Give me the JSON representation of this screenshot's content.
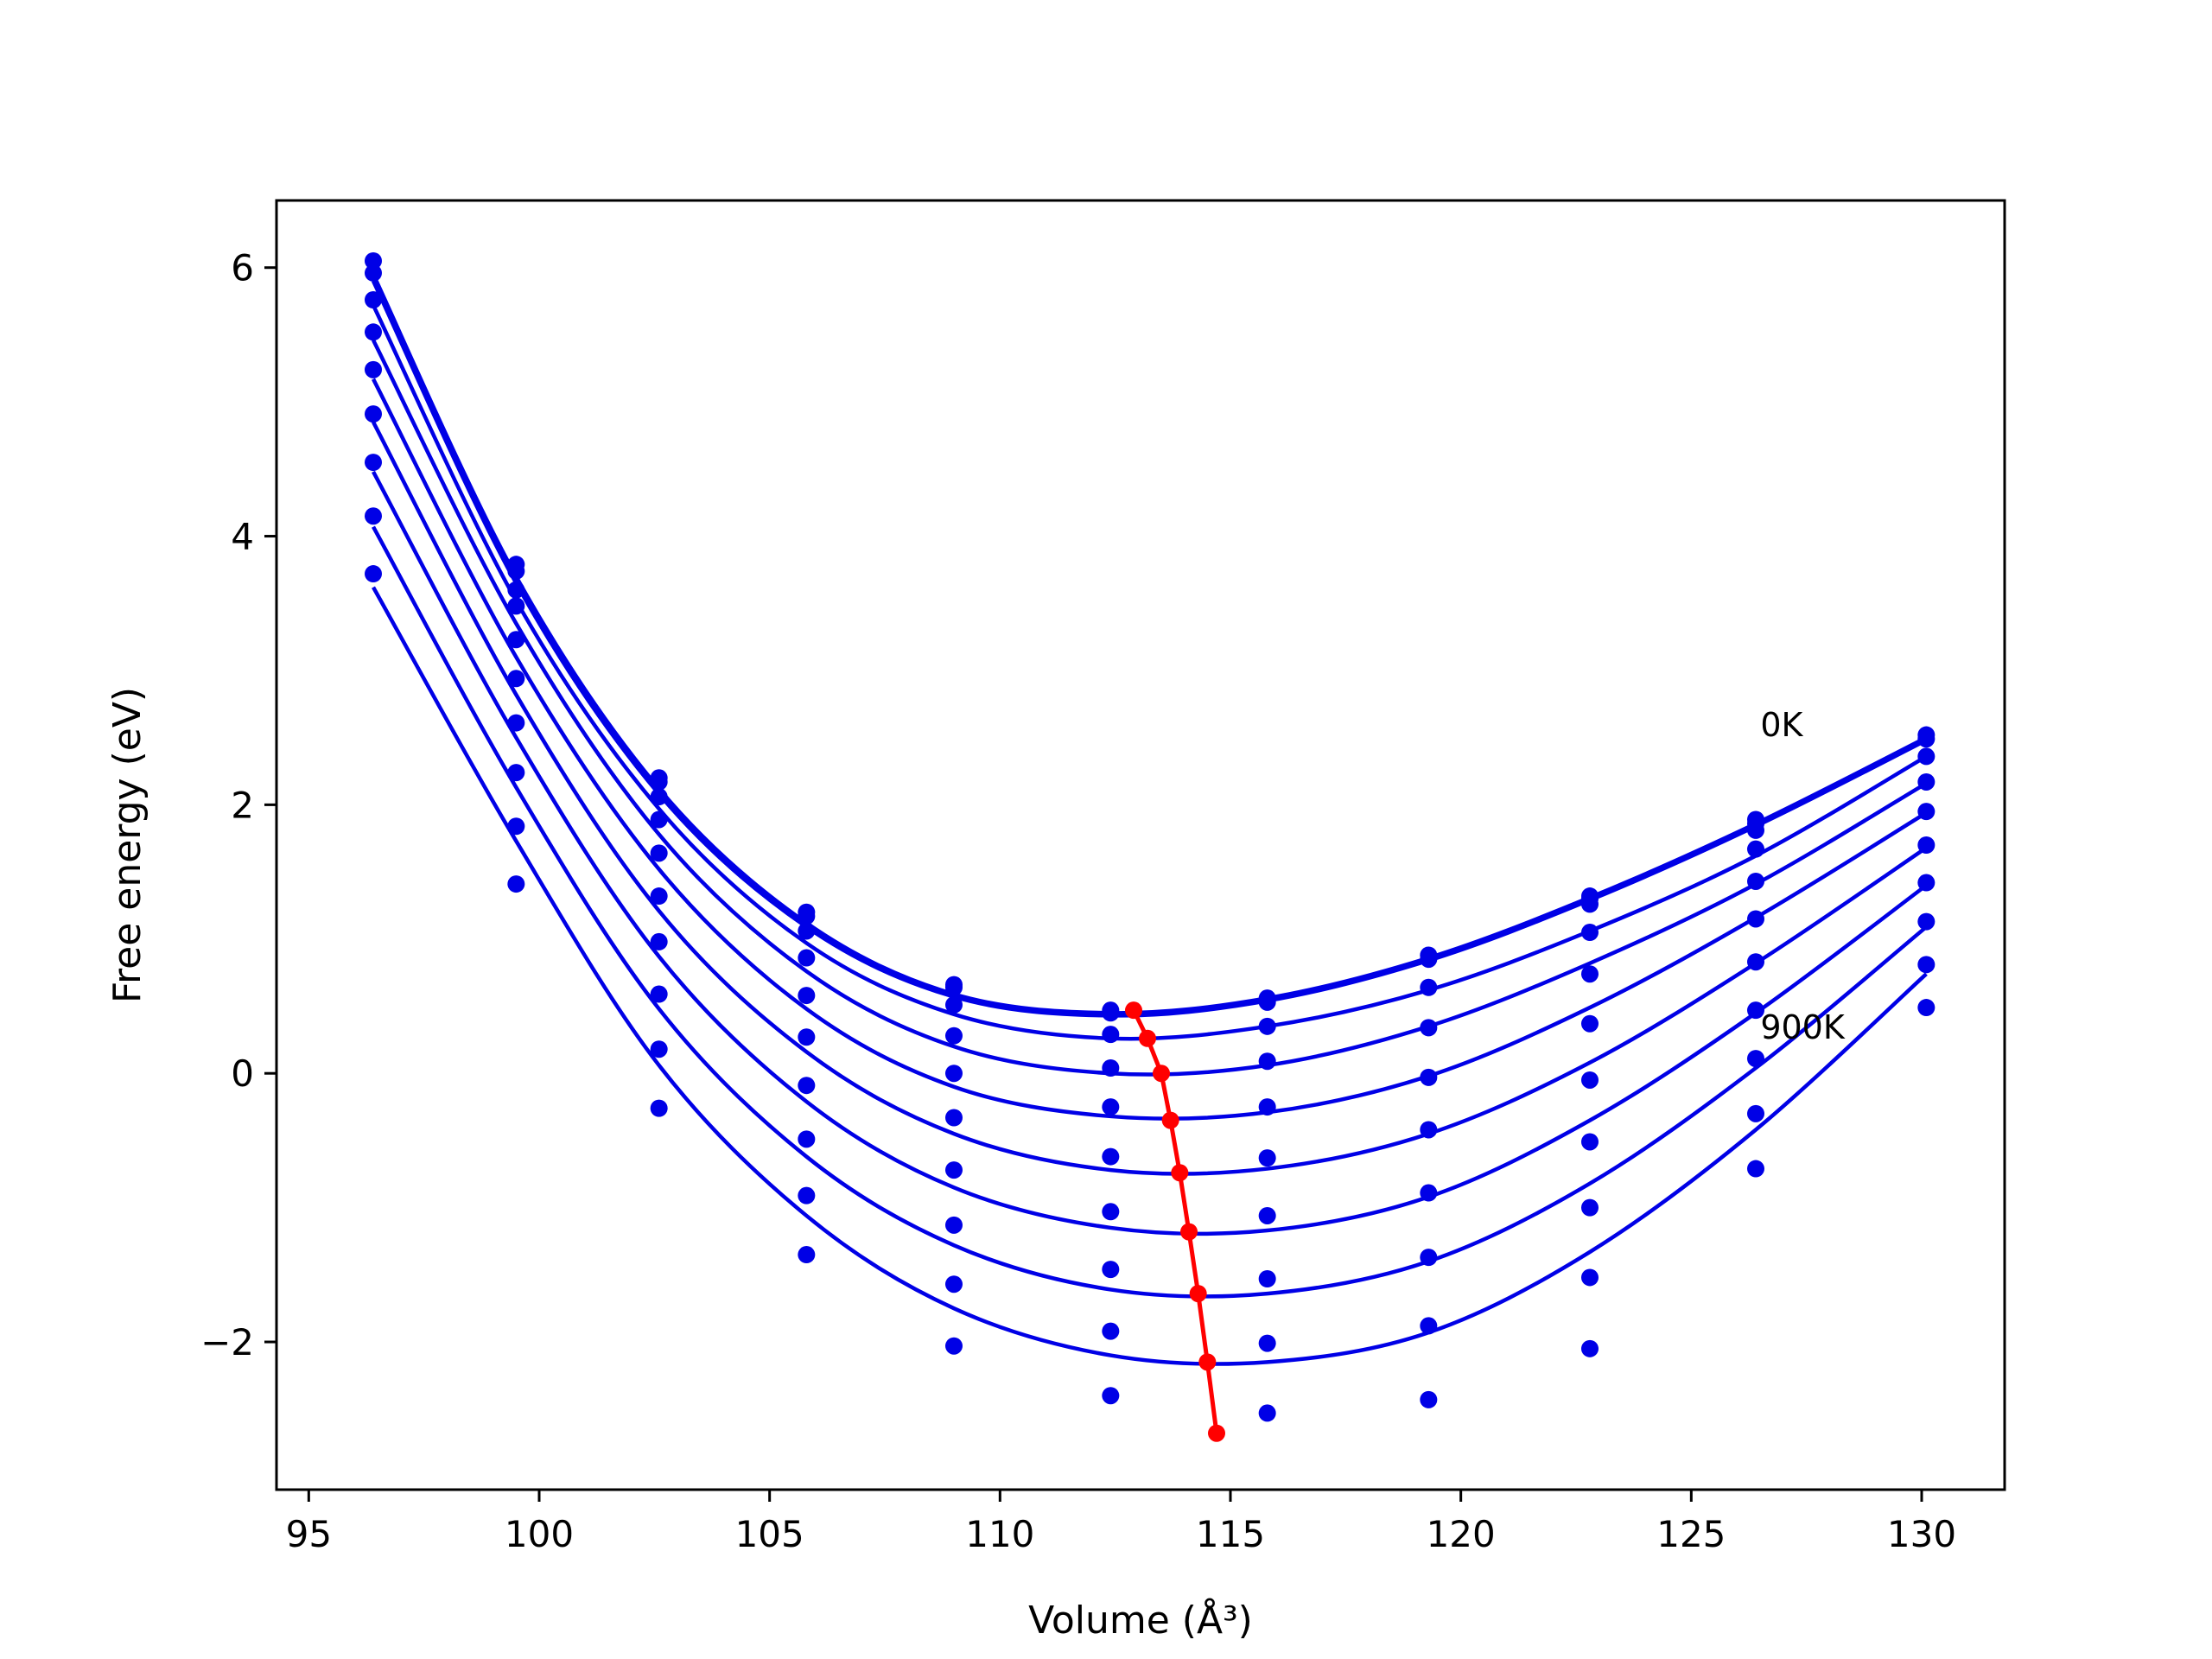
{
  "chart_data": {
    "type": "line",
    "title": "",
    "xlabel": "Volume (Å³)",
    "ylabel": "Free energy (eV)",
    "xlim": [
      94.3,
      131.8
    ],
    "ylim": [
      -3.1,
      6.5
    ],
    "xticks": [
      95,
      100,
      105,
      110,
      115,
      120,
      125,
      130
    ],
    "yticks": [
      -2,
      0,
      2,
      4,
      6
    ],
    "ytick_labels": [
      "−2",
      "0",
      "2",
      "4",
      "6"
    ],
    "grid": false,
    "legend": "none",
    "curve_color": "#0000e6",
    "minima_color": "#ff0000",
    "x": [
      96.4,
      99.5,
      102.6,
      105.8,
      109.0,
      112.4,
      115.8,
      119.3,
      122.8,
      126.4,
      130.1
    ],
    "series": [
      {
        "values": [
          6.05,
          3.79,
          2.2,
          1.2,
          0.66,
          0.47,
          0.56,
          0.88,
          1.32,
          1.89,
          2.52
        ]
      },
      {
        "values": [
          5.96,
          3.74,
          2.17,
          1.17,
          0.64,
          0.45,
          0.53,
          0.85,
          1.3,
          1.86,
          2.49
        ]
      },
      {
        "values": [
          5.76,
          3.6,
          2.06,
          1.06,
          0.51,
          0.29,
          0.35,
          0.64,
          1.26,
          1.81,
          2.36
        ]
      },
      {
        "values": [
          5.52,
          3.48,
          1.89,
          0.86,
          0.28,
          0.04,
          0.09,
          0.34,
          1.05,
          1.67,
          2.17
        ]
      },
      {
        "values": [
          5.24,
          3.23,
          1.64,
          0.58,
          0.0,
          -0.25,
          -0.25,
          -0.03,
          0.74,
          1.43,
          1.95
        ]
      },
      {
        "values": [
          4.91,
          2.94,
          1.32,
          0.27,
          -0.33,
          -0.62,
          -0.63,
          -0.42,
          0.37,
          1.15,
          1.7
        ]
      },
      {
        "values": [
          4.55,
          2.61,
          0.98,
          -0.09,
          -0.72,
          -1.03,
          -1.06,
          -0.89,
          -0.05,
          0.83,
          1.42
        ]
      },
      {
        "values": [
          4.15,
          2.24,
          0.59,
          -0.49,
          -1.13,
          -1.46,
          -1.53,
          -1.37,
          -0.51,
          0.47,
          1.13
        ]
      },
      {
        "values": [
          3.72,
          1.84,
          0.18,
          -0.91,
          -1.57,
          -1.92,
          -2.01,
          -1.88,
          -1.0,
          0.11,
          0.81
        ]
      },
      {
        "values": [
          null,
          1.41,
          -0.26,
          -1.35,
          -2.03,
          -2.4,
          -2.53,
          -2.43,
          -1.52,
          -0.3,
          0.49
        ]
      },
      {
        "values": [
          null,
          null,
          null,
          null,
          null,
          null,
          null,
          null,
          -2.05,
          -0.71,
          null
        ]
      }
    ],
    "fit_curves": [
      {
        "values": [
          5.95,
          3.7,
          2.12,
          1.12,
          0.59,
          0.45,
          0.56,
          0.86,
          1.31,
          1.86,
          2.5
        ]
      },
      {
        "values": [
          5.9,
          3.65,
          2.08,
          1.09,
          0.57,
          0.43,
          0.54,
          0.84,
          1.29,
          1.84,
          2.48
        ]
      },
      {
        "values": [
          5.72,
          3.52,
          1.97,
          0.97,
          0.44,
          0.26,
          0.35,
          0.62,
          1.06,
          1.62,
          2.36
        ]
      },
      {
        "values": [
          5.46,
          3.35,
          1.78,
          0.76,
          0.2,
          0.0,
          0.06,
          0.35,
          0.82,
          1.41,
          2.16
        ]
      },
      {
        "values": [
          5.17,
          3.1,
          1.52,
          0.48,
          -0.1,
          -0.32,
          -0.29,
          -0.02,
          0.49,
          1.16,
          1.94
        ]
      },
      {
        "values": [
          4.85,
          2.82,
          1.21,
          0.16,
          -0.45,
          -0.72,
          -0.71,
          -0.45,
          0.08,
          0.82,
          1.68
        ]
      },
      {
        "values": [
          4.48,
          2.5,
          0.87,
          -0.21,
          -0.85,
          -1.15,
          -1.17,
          -0.92,
          -0.35,
          0.45,
          1.4
        ]
      },
      {
        "values": [
          4.07,
          2.13,
          0.48,
          -0.62,
          -1.28,
          -1.61,
          -1.64,
          -1.4,
          -0.82,
          0.04,
          1.09
        ]
      },
      {
        "values": [
          3.62,
          1.73,
          0.06,
          -1.06,
          -1.75,
          -2.1,
          -2.15,
          -1.93,
          -1.33,
          -0.42,
          0.74
        ]
      }
    ],
    "minima": {
      "x": [
        112.9,
        113.2,
        113.5,
        113.7,
        113.9,
        114.1,
        114.3,
        114.5,
        114.7
      ],
      "y": [
        0.47,
        0.26,
        0.0,
        -0.35,
        -0.74,
        -1.18,
        -1.64,
        -2.15,
        -2.68
      ]
    },
    "annotations": [
      {
        "text": "0K",
        "x": 126.5,
        "y": 2.6
      },
      {
        "text": "900K",
        "x": 126.5,
        "y": 0.35
      }
    ]
  }
}
